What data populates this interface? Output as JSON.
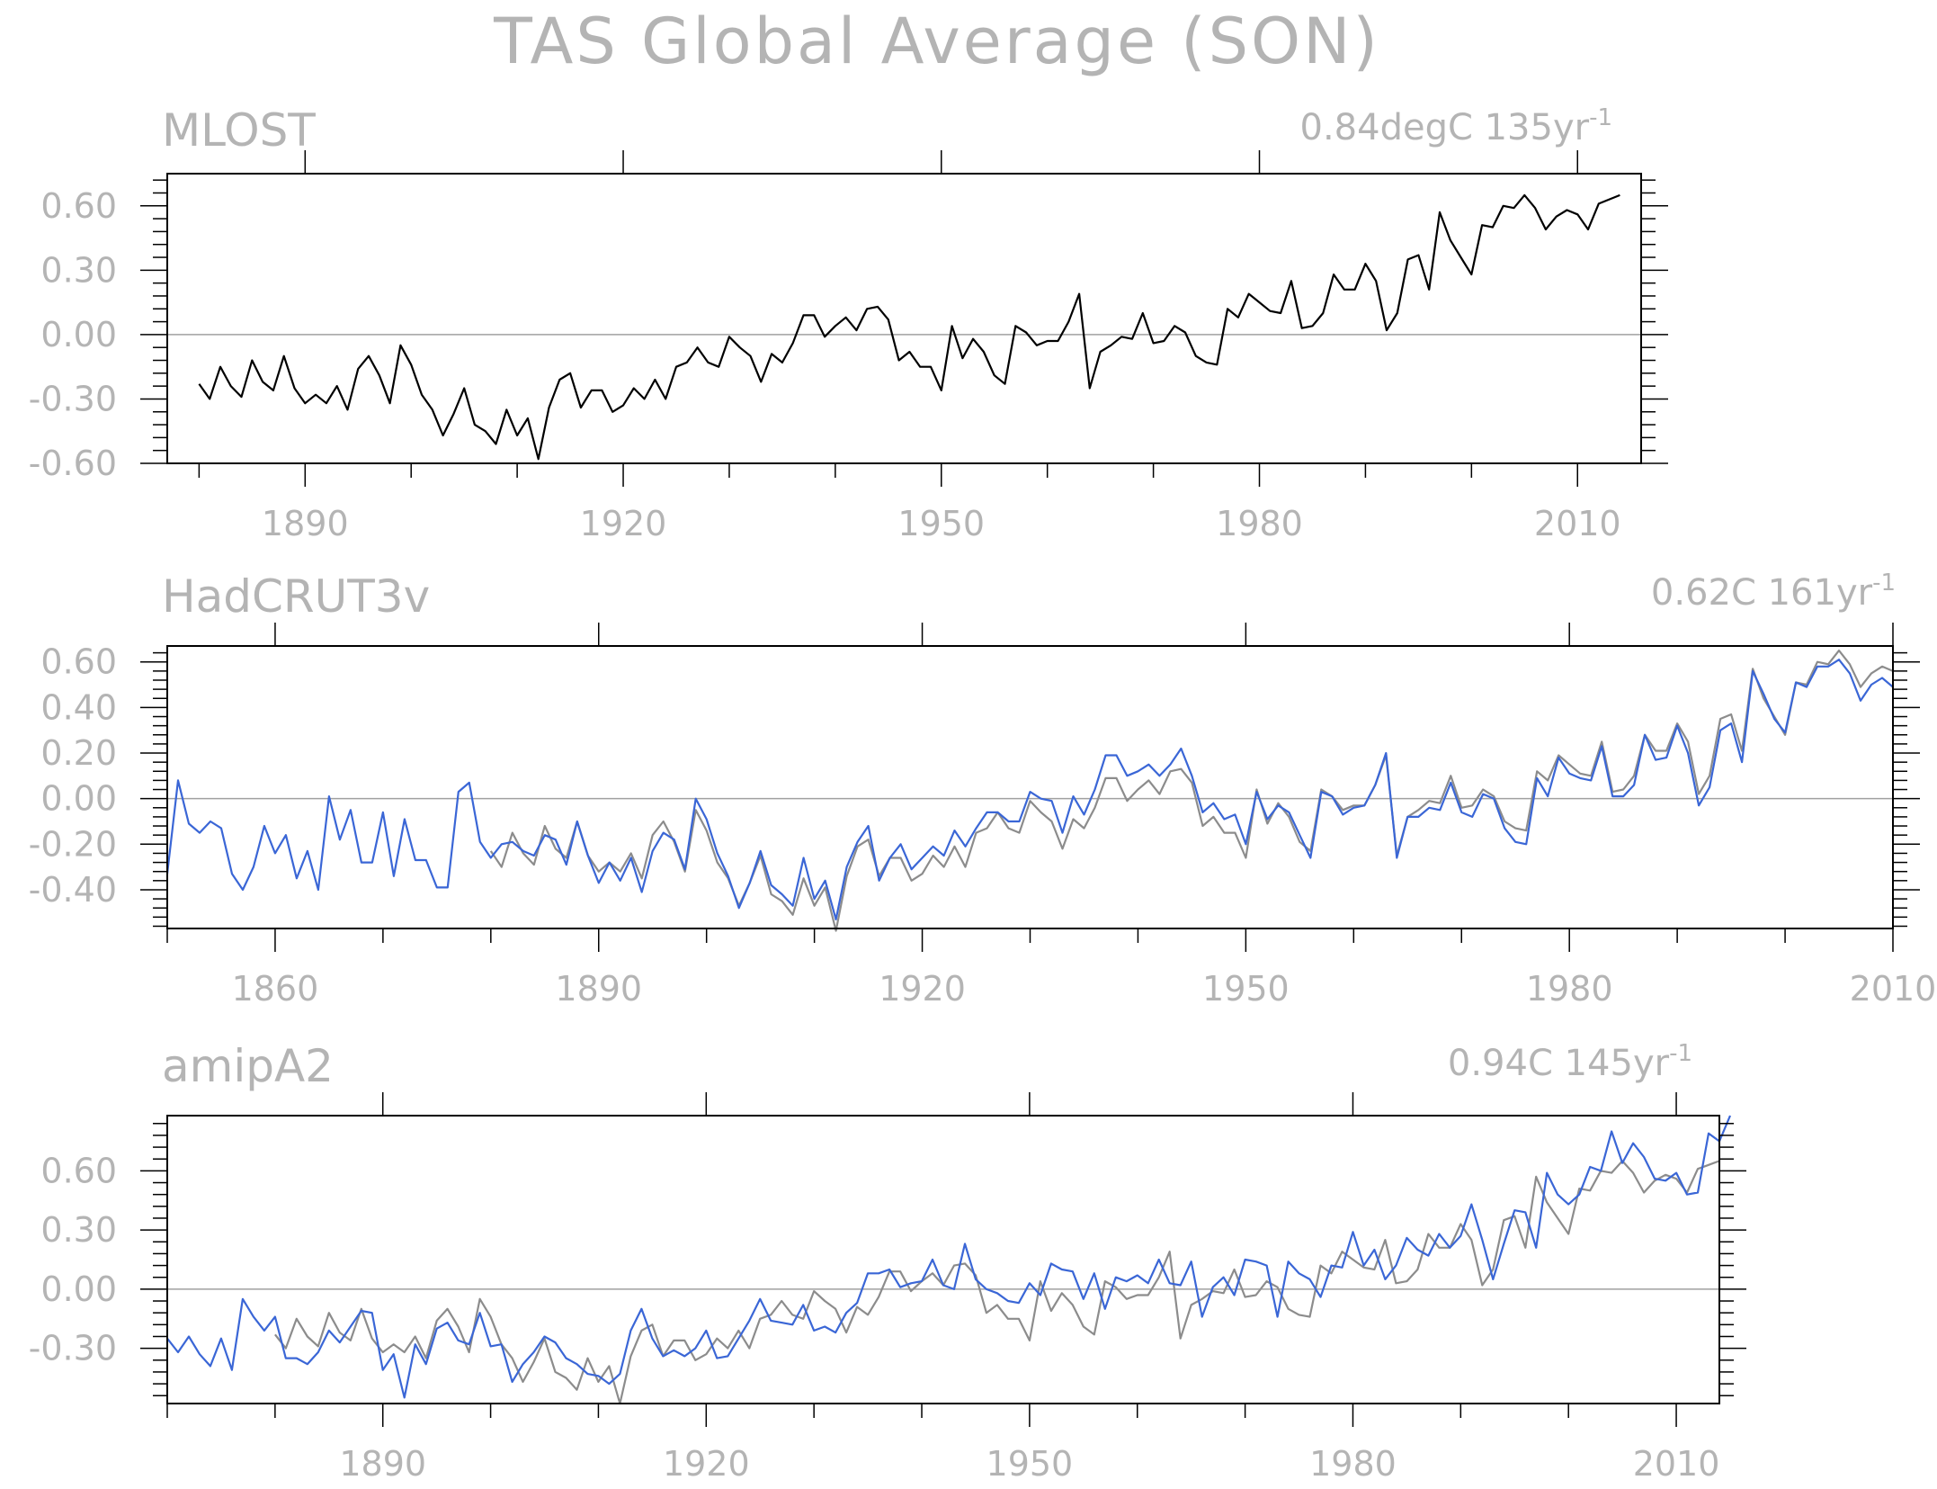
{
  "title": "TAS Global Average (SON)",
  "colors": {
    "obs": "#000000",
    "blue": "#3a66d6",
    "gray": "#8c8c8c",
    "label": "#b4b4b4"
  },
  "chart_data": [
    {
      "type": "line",
      "title": "MLOST",
      "trend_value": "0.84degC 135yr",
      "trend_exp": "-1",
      "xlim": [
        1877,
        2016
      ],
      "ylim": [
        -0.6,
        0.75
      ],
      "xticks": [
        1890,
        1920,
        1950,
        1980,
        2010
      ],
      "yticks": [
        0.6,
        0.3,
        0.0,
        -0.3,
        -0.6
      ],
      "yticklabels": [
        "0.60",
        "0.30",
        "0.00",
        "-0.30",
        "-0.60"
      ],
      "x_start": 1880,
      "series": [
        {
          "color": "#000000",
          "values": [
            -0.23,
            -0.3,
            -0.15,
            -0.24,
            -0.29,
            -0.12,
            -0.22,
            -0.26,
            -0.1,
            -0.25,
            -0.32,
            -0.28,
            -0.32,
            -0.24,
            -0.35,
            -0.16,
            -0.1,
            -0.19,
            -0.32,
            -0.05,
            -0.14,
            -0.28,
            -0.35,
            -0.47,
            -0.37,
            -0.25,
            -0.42,
            -0.45,
            -0.51,
            -0.35,
            -0.47,
            -0.39,
            -0.58,
            -0.34,
            -0.21,
            -0.18,
            -0.34,
            -0.26,
            -0.26,
            -0.36,
            -0.33,
            -0.25,
            -0.3,
            -0.21,
            -0.3,
            -0.15,
            -0.13,
            -0.06,
            -0.13,
            -0.15,
            -0.01,
            -0.06,
            -0.1,
            -0.22,
            -0.09,
            -0.13,
            -0.04,
            0.09,
            0.09,
            -0.01,
            0.04,
            0.08,
            0.02,
            0.12,
            0.13,
            0.07,
            -0.12,
            -0.08,
            -0.15,
            -0.15,
            -0.26,
            0.04,
            -0.11,
            -0.02,
            -0.08,
            -0.19,
            -0.23,
            0.04,
            0.01,
            -0.05,
            -0.03,
            -0.03,
            0.06,
            0.19,
            -0.25,
            -0.08,
            -0.05,
            -0.01,
            -0.02,
            0.1,
            -0.04,
            -0.03,
            0.04,
            0.01,
            -0.1,
            -0.13,
            -0.14,
            0.12,
            0.08,
            0.19,
            0.15,
            0.11,
            0.1,
            0.25,
            0.03,
            0.04,
            0.1,
            0.28,
            0.21,
            0.21,
            0.33,
            0.25,
            0.02,
            0.1,
            0.35,
            0.37,
            0.21,
            0.57,
            0.44,
            0.36,
            0.28,
            0.51,
            0.5,
            0.6,
            0.59,
            0.65,
            0.59,
            0.49,
            0.55,
            0.58,
            0.56,
            0.49,
            0.61,
            0.63,
            0.65
          ]
        }
      ]
    },
    {
      "type": "line",
      "title": "HadCRUT3v",
      "trend_value": "0.62C 161yr",
      "trend_exp": "-1",
      "xlim": [
        1850,
        2010
      ],
      "ylim": [
        -0.57,
        0.67
      ],
      "xticks": [
        1860,
        1890,
        1920,
        1950,
        1980,
        2010
      ],
      "yticks": [
        0.6,
        0.4,
        0.2,
        0.0,
        -0.2,
        -0.4
      ],
      "yticklabels": [
        "0.60",
        "0.40",
        "0.20",
        "0.00",
        "-0.20",
        "-0.40"
      ],
      "x_start": 1850,
      "series": [
        {
          "color": "#8c8c8c",
          "start": 1880,
          "values": [
            -0.23,
            -0.3,
            -0.15,
            -0.24,
            -0.29,
            -0.12,
            -0.22,
            -0.26,
            -0.1,
            -0.25,
            -0.32,
            -0.28,
            -0.32,
            -0.24,
            -0.35,
            -0.16,
            -0.1,
            -0.19,
            -0.32,
            -0.05,
            -0.14,
            -0.28,
            -0.35,
            -0.47,
            -0.37,
            -0.25,
            -0.42,
            -0.45,
            -0.51,
            -0.35,
            -0.47,
            -0.39,
            -0.58,
            -0.34,
            -0.21,
            -0.18,
            -0.34,
            -0.26,
            -0.26,
            -0.36,
            -0.33,
            -0.25,
            -0.3,
            -0.21,
            -0.3,
            -0.15,
            -0.13,
            -0.06,
            -0.13,
            -0.15,
            -0.01,
            -0.06,
            -0.1,
            -0.22,
            -0.09,
            -0.13,
            -0.04,
            0.09,
            0.09,
            -0.01,
            0.04,
            0.08,
            0.02,
            0.12,
            0.13,
            0.07,
            -0.12,
            -0.08,
            -0.15,
            -0.15,
            -0.26,
            0.04,
            -0.11,
            -0.02,
            -0.08,
            -0.19,
            -0.23,
            0.04,
            0.01,
            -0.05,
            -0.03,
            -0.03,
            0.06,
            0.19,
            -0.25,
            -0.08,
            -0.05,
            -0.01,
            -0.02,
            0.1,
            -0.04,
            -0.03,
            0.04,
            0.01,
            -0.1,
            -0.13,
            -0.14,
            0.12,
            0.08,
            0.19,
            0.15,
            0.11,
            0.1,
            0.25,
            0.03,
            0.04,
            0.1,
            0.28,
            0.21,
            0.21,
            0.33,
            0.25,
            0.02,
            0.1,
            0.35,
            0.37,
            0.21,
            0.57,
            0.44,
            0.36,
            0.28,
            0.51,
            0.5,
            0.6,
            0.59,
            0.65,
            0.59,
            0.49,
            0.55,
            0.58,
            0.56
          ]
        },
        {
          "color": "#3a66d6",
          "start": 1850,
          "values": [
            -0.33,
            0.08,
            -0.11,
            -0.15,
            -0.1,
            -0.13,
            -0.33,
            -0.4,
            -0.3,
            -0.12,
            -0.24,
            -0.16,
            -0.35,
            -0.23,
            -0.4,
            0.01,
            -0.18,
            -0.05,
            -0.28,
            -0.28,
            -0.06,
            -0.34,
            -0.09,
            -0.27,
            -0.27,
            -0.39,
            -0.39,
            0.03,
            0.07,
            -0.19,
            -0.26,
            -0.2,
            -0.19,
            -0.23,
            -0.25,
            -0.16,
            -0.18,
            -0.29,
            -0.1,
            -0.25,
            -0.37,
            -0.28,
            -0.36,
            -0.26,
            -0.41,
            -0.23,
            -0.15,
            -0.18,
            -0.31,
            0.0,
            -0.09,
            -0.24,
            -0.34,
            -0.48,
            -0.37,
            -0.23,
            -0.38,
            -0.42,
            -0.47,
            -0.26,
            -0.44,
            -0.36,
            -0.53,
            -0.3,
            -0.19,
            -0.12,
            -0.36,
            -0.26,
            -0.2,
            -0.31,
            -0.26,
            -0.21,
            -0.25,
            -0.14,
            -0.21,
            -0.13,
            -0.06,
            -0.06,
            -0.1,
            -0.1,
            0.03,
            0.0,
            -0.01,
            -0.15,
            0.01,
            -0.07,
            0.04,
            0.19,
            0.19,
            0.1,
            0.12,
            0.15,
            0.1,
            0.15,
            0.22,
            0.1,
            -0.06,
            -0.02,
            -0.09,
            -0.07,
            -0.2,
            0.03,
            -0.09,
            -0.03,
            -0.06,
            -0.16,
            -0.26,
            0.03,
            0.01,
            -0.07,
            -0.04,
            -0.03,
            0.06,
            0.2,
            -0.26,
            -0.08,
            -0.08,
            -0.04,
            -0.05,
            0.07,
            -0.06,
            -0.08,
            0.02,
            0.0,
            -0.13,
            -0.19,
            -0.2,
            0.09,
            0.01,
            0.18,
            0.11,
            0.09,
            0.08,
            0.23,
            0.01,
            0.01,
            0.06,
            0.28,
            0.17,
            0.18,
            0.32,
            0.2,
            -0.03,
            0.05,
            0.3,
            0.33,
            0.16,
            0.56,
            0.46,
            0.35,
            0.29,
            0.51,
            0.49,
            0.58,
            0.58,
            0.61,
            0.55,
            0.43,
            0.5,
            0.53,
            0.49
          ]
        }
      ]
    },
    {
      "type": "line",
      "title": "amipA2",
      "trend_value": "0.94C 145yr",
      "trend_exp": "-1",
      "xlim": [
        1870,
        2014
      ],
      "ylim": [
        -0.58,
        0.88
      ],
      "xticks": [
        1890,
        1920,
        1950,
        1980,
        2010
      ],
      "yticks": [
        0.6,
        0.3,
        0.0,
        -0.3
      ],
      "yticklabels": [
        "0.60",
        "0.30",
        "0.00",
        "-0.30"
      ],
      "x_start": 1870,
      "series": [
        {
          "color": "#8c8c8c",
          "start": 1880,
          "values": [
            -0.23,
            -0.3,
            -0.15,
            -0.24,
            -0.29,
            -0.12,
            -0.22,
            -0.26,
            -0.1,
            -0.25,
            -0.32,
            -0.28,
            -0.32,
            -0.24,
            -0.35,
            -0.16,
            -0.1,
            -0.19,
            -0.32,
            -0.05,
            -0.14,
            -0.28,
            -0.35,
            -0.47,
            -0.37,
            -0.25,
            -0.42,
            -0.45,
            -0.51,
            -0.35,
            -0.47,
            -0.39,
            -0.58,
            -0.34,
            -0.21,
            -0.18,
            -0.34,
            -0.26,
            -0.26,
            -0.36,
            -0.33,
            -0.25,
            -0.3,
            -0.21,
            -0.3,
            -0.15,
            -0.13,
            -0.06,
            -0.13,
            -0.15,
            -0.01,
            -0.06,
            -0.1,
            -0.22,
            -0.09,
            -0.13,
            -0.04,
            0.09,
            0.09,
            -0.01,
            0.04,
            0.08,
            0.02,
            0.12,
            0.13,
            0.07,
            -0.12,
            -0.08,
            -0.15,
            -0.15,
            -0.26,
            0.04,
            -0.11,
            -0.02,
            -0.08,
            -0.19,
            -0.23,
            0.04,
            0.01,
            -0.05,
            -0.03,
            -0.03,
            0.06,
            0.19,
            -0.25,
            -0.08,
            -0.05,
            -0.01,
            -0.02,
            0.1,
            -0.04,
            -0.03,
            0.04,
            0.01,
            -0.1,
            -0.13,
            -0.14,
            0.12,
            0.08,
            0.19,
            0.15,
            0.11,
            0.1,
            0.25,
            0.03,
            0.04,
            0.1,
            0.28,
            0.21,
            0.21,
            0.33,
            0.25,
            0.02,
            0.1,
            0.35,
            0.37,
            0.21,
            0.57,
            0.44,
            0.36,
            0.28,
            0.51,
            0.5,
            0.6,
            0.59,
            0.65,
            0.59,
            0.49,
            0.55,
            0.58,
            0.56,
            0.49,
            0.61,
            0.63,
            0.65
          ]
        },
        {
          "color": "#3a66d6",
          "start": 1870,
          "values": [
            -0.25,
            -0.32,
            -0.24,
            -0.33,
            -0.39,
            -0.25,
            -0.41,
            -0.05,
            -0.14,
            -0.21,
            -0.14,
            -0.35,
            -0.35,
            -0.38,
            -0.32,
            -0.21,
            -0.27,
            -0.19,
            -0.11,
            -0.12,
            -0.41,
            -0.33,
            -0.55,
            -0.28,
            -0.38,
            -0.2,
            -0.17,
            -0.26,
            -0.28,
            -0.12,
            -0.29,
            -0.28,
            -0.47,
            -0.38,
            -0.32,
            -0.24,
            -0.27,
            -0.35,
            -0.38,
            -0.43,
            -0.44,
            -0.48,
            -0.43,
            -0.21,
            -0.1,
            -0.25,
            -0.34,
            -0.31,
            -0.34,
            -0.3,
            -0.21,
            -0.35,
            -0.34,
            -0.25,
            -0.16,
            -0.05,
            -0.16,
            -0.17,
            -0.18,
            -0.08,
            -0.21,
            -0.19,
            -0.22,
            -0.12,
            -0.07,
            0.08,
            0.08,
            0.1,
            0.01,
            0.03,
            0.04,
            0.15,
            0.02,
            0.0,
            0.23,
            0.05,
            0.0,
            -0.02,
            -0.06,
            -0.07,
            0.03,
            -0.03,
            0.13,
            0.1,
            0.09,
            -0.05,
            0.08,
            -0.1,
            0.06,
            0.04,
            0.07,
            0.03,
            0.15,
            0.03,
            0.02,
            0.14,
            -0.14,
            0.01,
            0.06,
            -0.03,
            0.15,
            0.14,
            0.12,
            -0.14,
            0.14,
            0.08,
            0.05,
            -0.04,
            0.12,
            0.11,
            0.29,
            0.12,
            0.2,
            0.05,
            0.12,
            0.26,
            0.2,
            0.17,
            0.28,
            0.21,
            0.27,
            0.43,
            0.25,
            0.05,
            0.23,
            0.4,
            0.39,
            0.21,
            0.59,
            0.48,
            0.43,
            0.48,
            0.62,
            0.6,
            0.8,
            0.64,
            0.74,
            0.67,
            0.56,
            0.55,
            0.59,
            0.48,
            0.49,
            0.79,
            0.75,
            0.88
          ]
        }
      ]
    }
  ]
}
